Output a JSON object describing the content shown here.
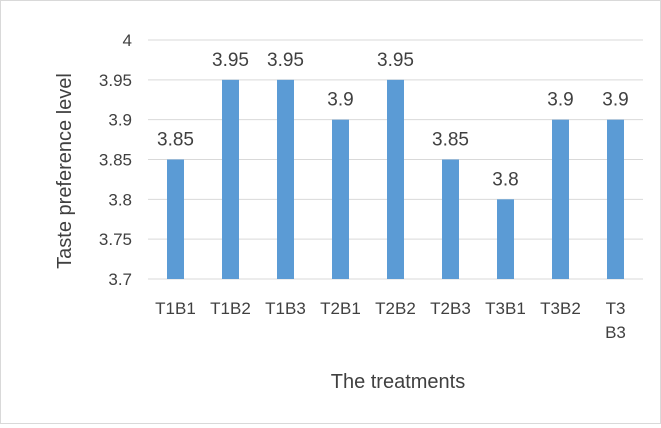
{
  "chart_data": {
    "type": "bar",
    "categories": [
      "T1B1",
      "T1B2",
      "T1B3",
      "T2B1",
      "T2B2",
      "T2B3",
      "T3B1",
      "T3B2",
      "T3 B3"
    ],
    "values": [
      3.85,
      3.95,
      3.95,
      3.9,
      3.95,
      3.85,
      3.8,
      3.9,
      3.9
    ],
    "data_labels": [
      "3.85",
      "3.95",
      "3.95",
      "3.9",
      "3.95",
      "3.85",
      "3.8",
      "3.9",
      "3.9"
    ],
    "xlabel": "The treatments",
    "ylabel": "Taste preference  level",
    "ylim": [
      3.7,
      4
    ],
    "yticks": [
      "3.7",
      "3.75",
      "3.8",
      "3.85",
      "3.9",
      "3.95",
      "4"
    ],
    "grid": true,
    "legend": "none",
    "colors": {
      "bar": "#5b9bd5",
      "grid": "#d9d9d9",
      "text": "#404040"
    }
  }
}
